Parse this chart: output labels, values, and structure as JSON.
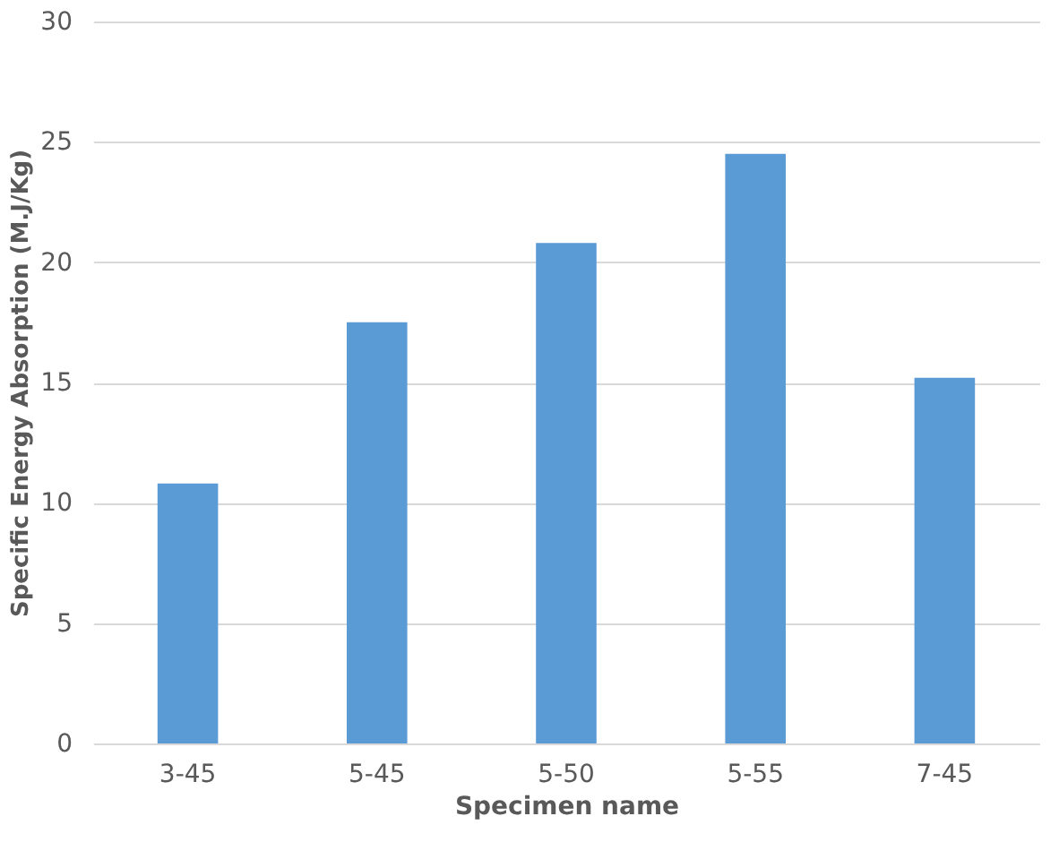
{
  "chart_data": {
    "type": "bar",
    "xlabel": "Specimen name",
    "ylabel": "Specific Energy Absorption  (M.J/Kg)",
    "categories": [
      "3-45",
      "5-45",
      "5-50",
      "5-55",
      "7-45"
    ],
    "values": [
      10.8,
      17.5,
      20.8,
      24.5,
      15.2
    ],
    "color": "#5b9bd5",
    "ylim": [
      0,
      30
    ],
    "yticks": [
      0,
      5,
      10,
      15,
      20,
      25,
      30
    ],
    "grid": "y"
  }
}
